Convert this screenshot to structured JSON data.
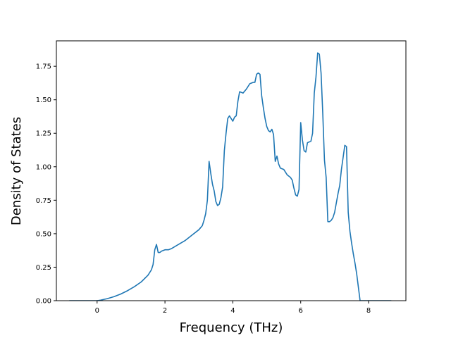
{
  "chart_data": {
    "type": "line",
    "title": "",
    "xlabel": "Frequency (THz)",
    "ylabel": "Density of States",
    "xlim": [
      -1.2,
      9.1
    ],
    "ylim": [
      0.0,
      1.94
    ],
    "xticks": [
      0,
      2,
      4,
      6,
      8
    ],
    "xtick_labels": [
      "0",
      "2",
      "4",
      "6",
      "8"
    ],
    "yticks": [
      0.0,
      0.25,
      0.5,
      0.75,
      1.0,
      1.25,
      1.5,
      1.75
    ],
    "ytick_labels": [
      "0.00",
      "0.25",
      "0.50",
      "0.75",
      "1.00",
      "1.25",
      "1.50",
      "1.75"
    ],
    "grid": false,
    "series": [
      {
        "color": "#1f77b4",
        "x": [
          -0.82,
          -0.3,
          0.0,
          0.1,
          0.3,
          0.5,
          0.7,
          0.9,
          1.1,
          1.3,
          1.5,
          1.6,
          1.65,
          1.7,
          1.75,
          1.8,
          1.85,
          1.9,
          2.0,
          2.1,
          2.2,
          2.4,
          2.6,
          2.8,
          3.0,
          3.1,
          3.15,
          3.2,
          3.25,
          3.3,
          3.35,
          3.4,
          3.45,
          3.5,
          3.55,
          3.6,
          3.65,
          3.7,
          3.75,
          3.8,
          3.85,
          3.9,
          3.95,
          4.0,
          4.05,
          4.1,
          4.15,
          4.2,
          4.3,
          4.4,
          4.5,
          4.6,
          4.65,
          4.7,
          4.75,
          4.8,
          4.85,
          4.9,
          4.95,
          5.0,
          5.05,
          5.1,
          5.15,
          5.2,
          5.25,
          5.3,
          5.35,
          5.4,
          5.5,
          5.6,
          5.7,
          5.75,
          5.8,
          5.85,
          5.9,
          5.95,
          6.0,
          6.05,
          6.1,
          6.15,
          6.2,
          6.3,
          6.35,
          6.4,
          6.45,
          6.5,
          6.55,
          6.6,
          6.65,
          6.7,
          6.75,
          6.8,
          6.85,
          6.9,
          6.95,
          7.0,
          7.05,
          7.1,
          7.15,
          7.2,
          7.3,
          7.35,
          7.4,
          7.45,
          7.5,
          7.55,
          7.6,
          7.65,
          7.7,
          7.75,
          7.8,
          7.85,
          7.9,
          8.0,
          8.67
        ],
        "y": [
          0.0,
          0.0,
          0.0,
          0.004,
          0.015,
          0.03,
          0.05,
          0.075,
          0.105,
          0.14,
          0.19,
          0.23,
          0.27,
          0.38,
          0.42,
          0.36,
          0.36,
          0.37,
          0.38,
          0.38,
          0.39,
          0.42,
          0.45,
          0.49,
          0.53,
          0.56,
          0.6,
          0.65,
          0.75,
          1.04,
          0.95,
          0.87,
          0.82,
          0.74,
          0.71,
          0.72,
          0.77,
          0.85,
          1.12,
          1.25,
          1.36,
          1.38,
          1.36,
          1.34,
          1.37,
          1.38,
          1.49,
          1.56,
          1.55,
          1.58,
          1.62,
          1.63,
          1.63,
          1.69,
          1.7,
          1.69,
          1.53,
          1.44,
          1.36,
          1.3,
          1.27,
          1.26,
          1.28,
          1.24,
          1.04,
          1.08,
          1.02,
          0.99,
          0.98,
          0.94,
          0.92,
          0.9,
          0.84,
          0.79,
          0.78,
          0.83,
          1.33,
          1.2,
          1.12,
          1.11,
          1.18,
          1.19,
          1.25,
          1.55,
          1.67,
          1.85,
          1.84,
          1.7,
          1.4,
          1.05,
          0.92,
          0.59,
          0.59,
          0.6,
          0.62,
          0.66,
          0.73,
          0.8,
          0.86,
          0.98,
          1.16,
          1.15,
          0.66,
          0.52,
          0.43,
          0.35,
          0.28,
          0.2,
          0.1,
          0.0,
          0.0,
          0.0,
          0.0,
          0.0,
          0.0
        ]
      }
    ]
  }
}
